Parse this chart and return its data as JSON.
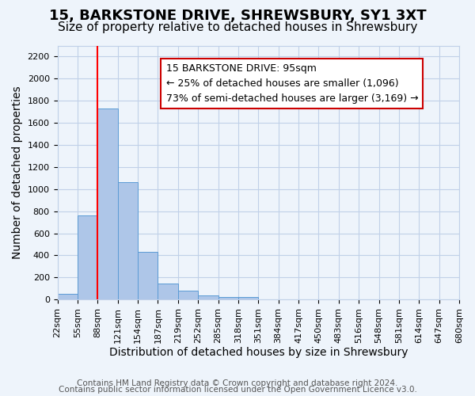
{
  "title": "15, BARKSTONE DRIVE, SHREWSBURY, SY1 3XT",
  "subtitle": "Size of property relative to detached houses in Shrewsbury",
  "xlabel": "Distribution of detached houses by size in Shrewsbury",
  "ylabel": "Number of detached properties",
  "bar_values": [
    55,
    760,
    1730,
    1060,
    430,
    145,
    80,
    40,
    25,
    20,
    0,
    0,
    0,
    0,
    0,
    0,
    0,
    0,
    0,
    0
  ],
  "bin_labels": [
    "22sqm",
    "55sqm",
    "88sqm",
    "121sqm",
    "154sqm",
    "187sqm",
    "219sqm",
    "252sqm",
    "285sqm",
    "318sqm",
    "351sqm",
    "384sqm",
    "417sqm",
    "450sqm",
    "483sqm",
    "516sqm",
    "548sqm",
    "581sqm",
    "614sqm",
    "647sqm",
    "680sqm"
  ],
  "bar_color": "#aec6e8",
  "bar_edge_color": "#5b9bd5",
  "grid_color": "#c0d0e8",
  "background_color": "#eef4fb",
  "red_line_x": 2,
  "annotation_text": "15 BARKSTONE DRIVE: 95sqm\n← 25% of detached houses are smaller (1,096)\n73% of semi-detached houses are larger (3,169) →",
  "annotation_box_color": "#ffffff",
  "annotation_box_edge": "#cc0000",
  "ylim": [
    0,
    2300
  ],
  "yticks": [
    0,
    200,
    400,
    600,
    800,
    1000,
    1200,
    1400,
    1600,
    1800,
    2000,
    2200
  ],
  "footer1": "Contains HM Land Registry data © Crown copyright and database right 2024.",
  "footer2": "Contains public sector information licensed under the Open Government Licence v3.0.",
  "title_fontsize": 13,
  "subtitle_fontsize": 11,
  "axis_label_fontsize": 10,
  "tick_fontsize": 8,
  "annotation_fontsize": 9,
  "footer_fontsize": 7.5
}
